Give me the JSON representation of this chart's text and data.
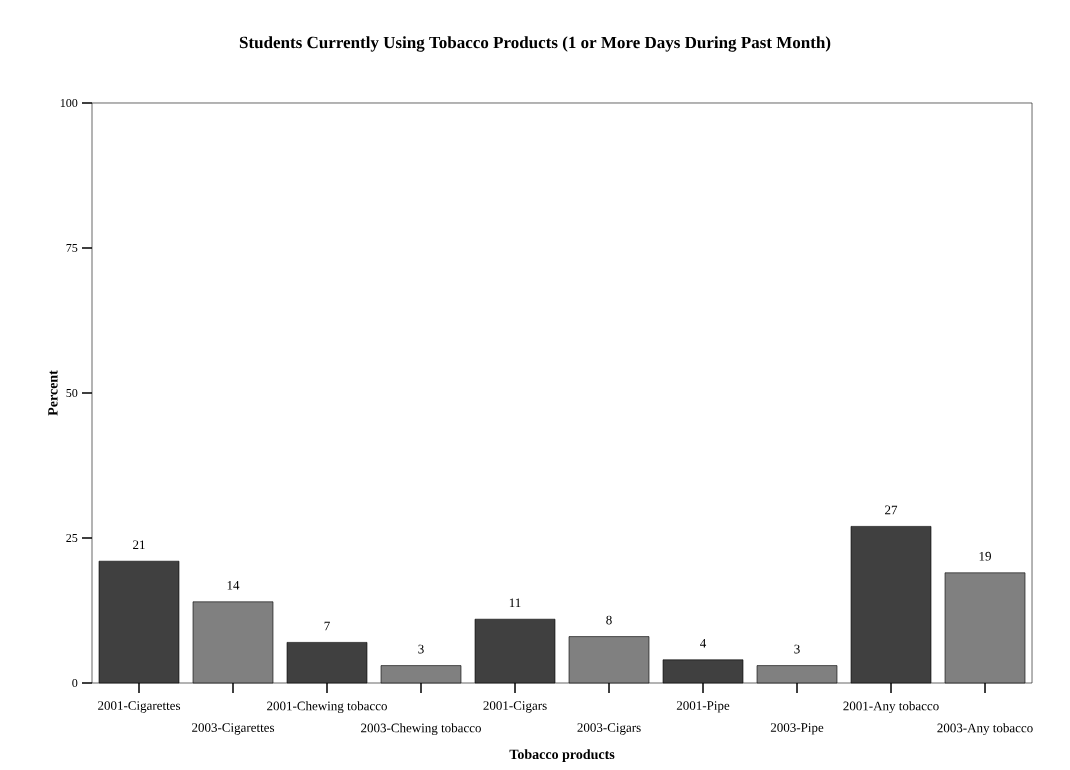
{
  "chart_data": {
    "type": "bar",
    "title": "Students Currently Using Tobacco Products (1 or More Days During Past Month)",
    "xlabel": "Tobacco products",
    "ylabel": "Percent",
    "categories": [
      "2001-Cigarettes",
      "2003-Cigarettes",
      "2001-Chewing tobacco",
      "2003-Chewing tobacco",
      "2001-Cigars",
      "2003-Cigars",
      "2001-Pipe",
      "2003-Pipe",
      "2001-Any tobacco",
      "2003-Any tobacco"
    ],
    "values": [
      21,
      14,
      7,
      3,
      11,
      8,
      4,
      3,
      27,
      19
    ],
    "colors": [
      "#404040",
      "#808080",
      "#404040",
      "#808080",
      "#404040",
      "#808080",
      "#404040",
      "#808080",
      "#404040",
      "#808080"
    ],
    "ylim": [
      0,
      100
    ],
    "yticks": [
      0,
      25,
      50,
      75,
      100
    ],
    "data_labels": true
  }
}
